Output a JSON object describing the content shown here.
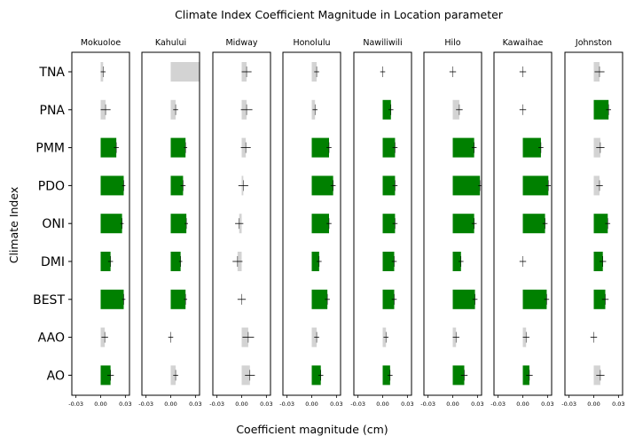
{
  "chart_data": {
    "type": "bar",
    "orientation": "horizontal",
    "title": "Climate Index Coefficient Magnitude in Location parameter",
    "xlabel": "Coefficient magnitude (cm)",
    "ylabel": "Climate Index",
    "xlim": [
      -0.035,
      0.035
    ],
    "x_ticks": [
      -0.03,
      0.0,
      0.03
    ],
    "x_tick_labels": [
      "-0.03",
      "0.00",
      "0.03"
    ],
    "indices": [
      "TNA",
      "PNA",
      "PMM",
      "PDO",
      "ONI",
      "DMI",
      "BEST",
      "AAO",
      "AO"
    ],
    "colors": {
      "significant": "#008000",
      "not_significant": "#d3d3d3",
      "error_bar": "#000000"
    },
    "panels": [
      {
        "name": "Mokuoloe",
        "values": [
          0.003,
          0.006,
          0.019,
          0.028,
          0.026,
          0.012,
          0.028,
          0.005,
          0.012
        ],
        "errors": [
          0.003,
          0.006,
          0.003,
          0.002,
          0.002,
          0.003,
          0.002,
          0.004,
          0.004
        ],
        "significant": [
          false,
          false,
          true,
          true,
          true,
          true,
          true,
          false,
          true
        ]
      },
      {
        "name": "Kahului",
        "values": [
          0.04,
          0.006,
          0.018,
          0.015,
          0.019,
          0.012,
          0.018,
          0.0,
          0.006
        ],
        "errors": [
          0.0,
          0.003,
          0.002,
          0.003,
          0.002,
          0.002,
          0.002,
          0.003,
          0.003
        ],
        "significant": [
          false,
          false,
          true,
          true,
          true,
          true,
          true,
          false,
          false
        ]
      },
      {
        "name": "Midway",
        "values": [
          0.006,
          0.006,
          0.005,
          0.002,
          -0.003,
          -0.005,
          0.0,
          0.008,
          0.01
        ],
        "errors": [
          0.006,
          0.007,
          0.006,
          0.006,
          0.005,
          0.006,
          0.005,
          0.007,
          0.006
        ],
        "significant": [
          false,
          false,
          false,
          false,
          false,
          false,
          false,
          false,
          false
        ]
      },
      {
        "name": "Honolulu",
        "values": [
          0.006,
          0.004,
          0.021,
          0.026,
          0.021,
          0.009,
          0.019,
          0.006,
          0.011
        ],
        "errors": [
          0.003,
          0.003,
          0.003,
          0.003,
          0.003,
          0.003,
          0.003,
          0.003,
          0.003
        ],
        "significant": [
          false,
          false,
          true,
          true,
          true,
          true,
          true,
          false,
          true
        ]
      },
      {
        "name": "Nawiliwili",
        "values": [
          0.0,
          0.01,
          0.015,
          0.015,
          0.015,
          0.014,
          0.014,
          0.004,
          0.009
        ],
        "errors": [
          0.003,
          0.003,
          0.003,
          0.003,
          0.003,
          0.003,
          0.003,
          0.003,
          0.003
        ],
        "significant": [
          false,
          true,
          true,
          true,
          true,
          true,
          true,
          false,
          true
        ]
      },
      {
        "name": "Hilo",
        "values": [
          0.0,
          0.008,
          0.026,
          0.033,
          0.026,
          0.01,
          0.027,
          0.004,
          0.014
        ],
        "errors": [
          0.004,
          0.004,
          0.003,
          0.002,
          0.003,
          0.003,
          0.003,
          0.004,
          0.004
        ],
        "significant": [
          false,
          false,
          true,
          true,
          true,
          true,
          true,
          false,
          true
        ]
      },
      {
        "name": "Kawaihae",
        "values": [
          0.0,
          0.0,
          0.022,
          0.031,
          0.027,
          0.0,
          0.029,
          0.004,
          0.008
        ],
        "errors": [
          0.004,
          0.004,
          0.003,
          0.003,
          0.003,
          0.004,
          0.003,
          0.004,
          0.004
        ],
        "significant": [
          false,
          false,
          true,
          true,
          true,
          false,
          true,
          false,
          true
        ]
      },
      {
        "name": "Johnston",
        "values": [
          0.007,
          0.018,
          0.008,
          0.007,
          0.017,
          0.011,
          0.014,
          0.0,
          0.008
        ],
        "errors": [
          0.006,
          0.003,
          0.005,
          0.004,
          0.003,
          0.004,
          0.004,
          0.004,
          0.005
        ],
        "significant": [
          false,
          true,
          false,
          false,
          true,
          true,
          true,
          false,
          false
        ]
      }
    ]
  }
}
